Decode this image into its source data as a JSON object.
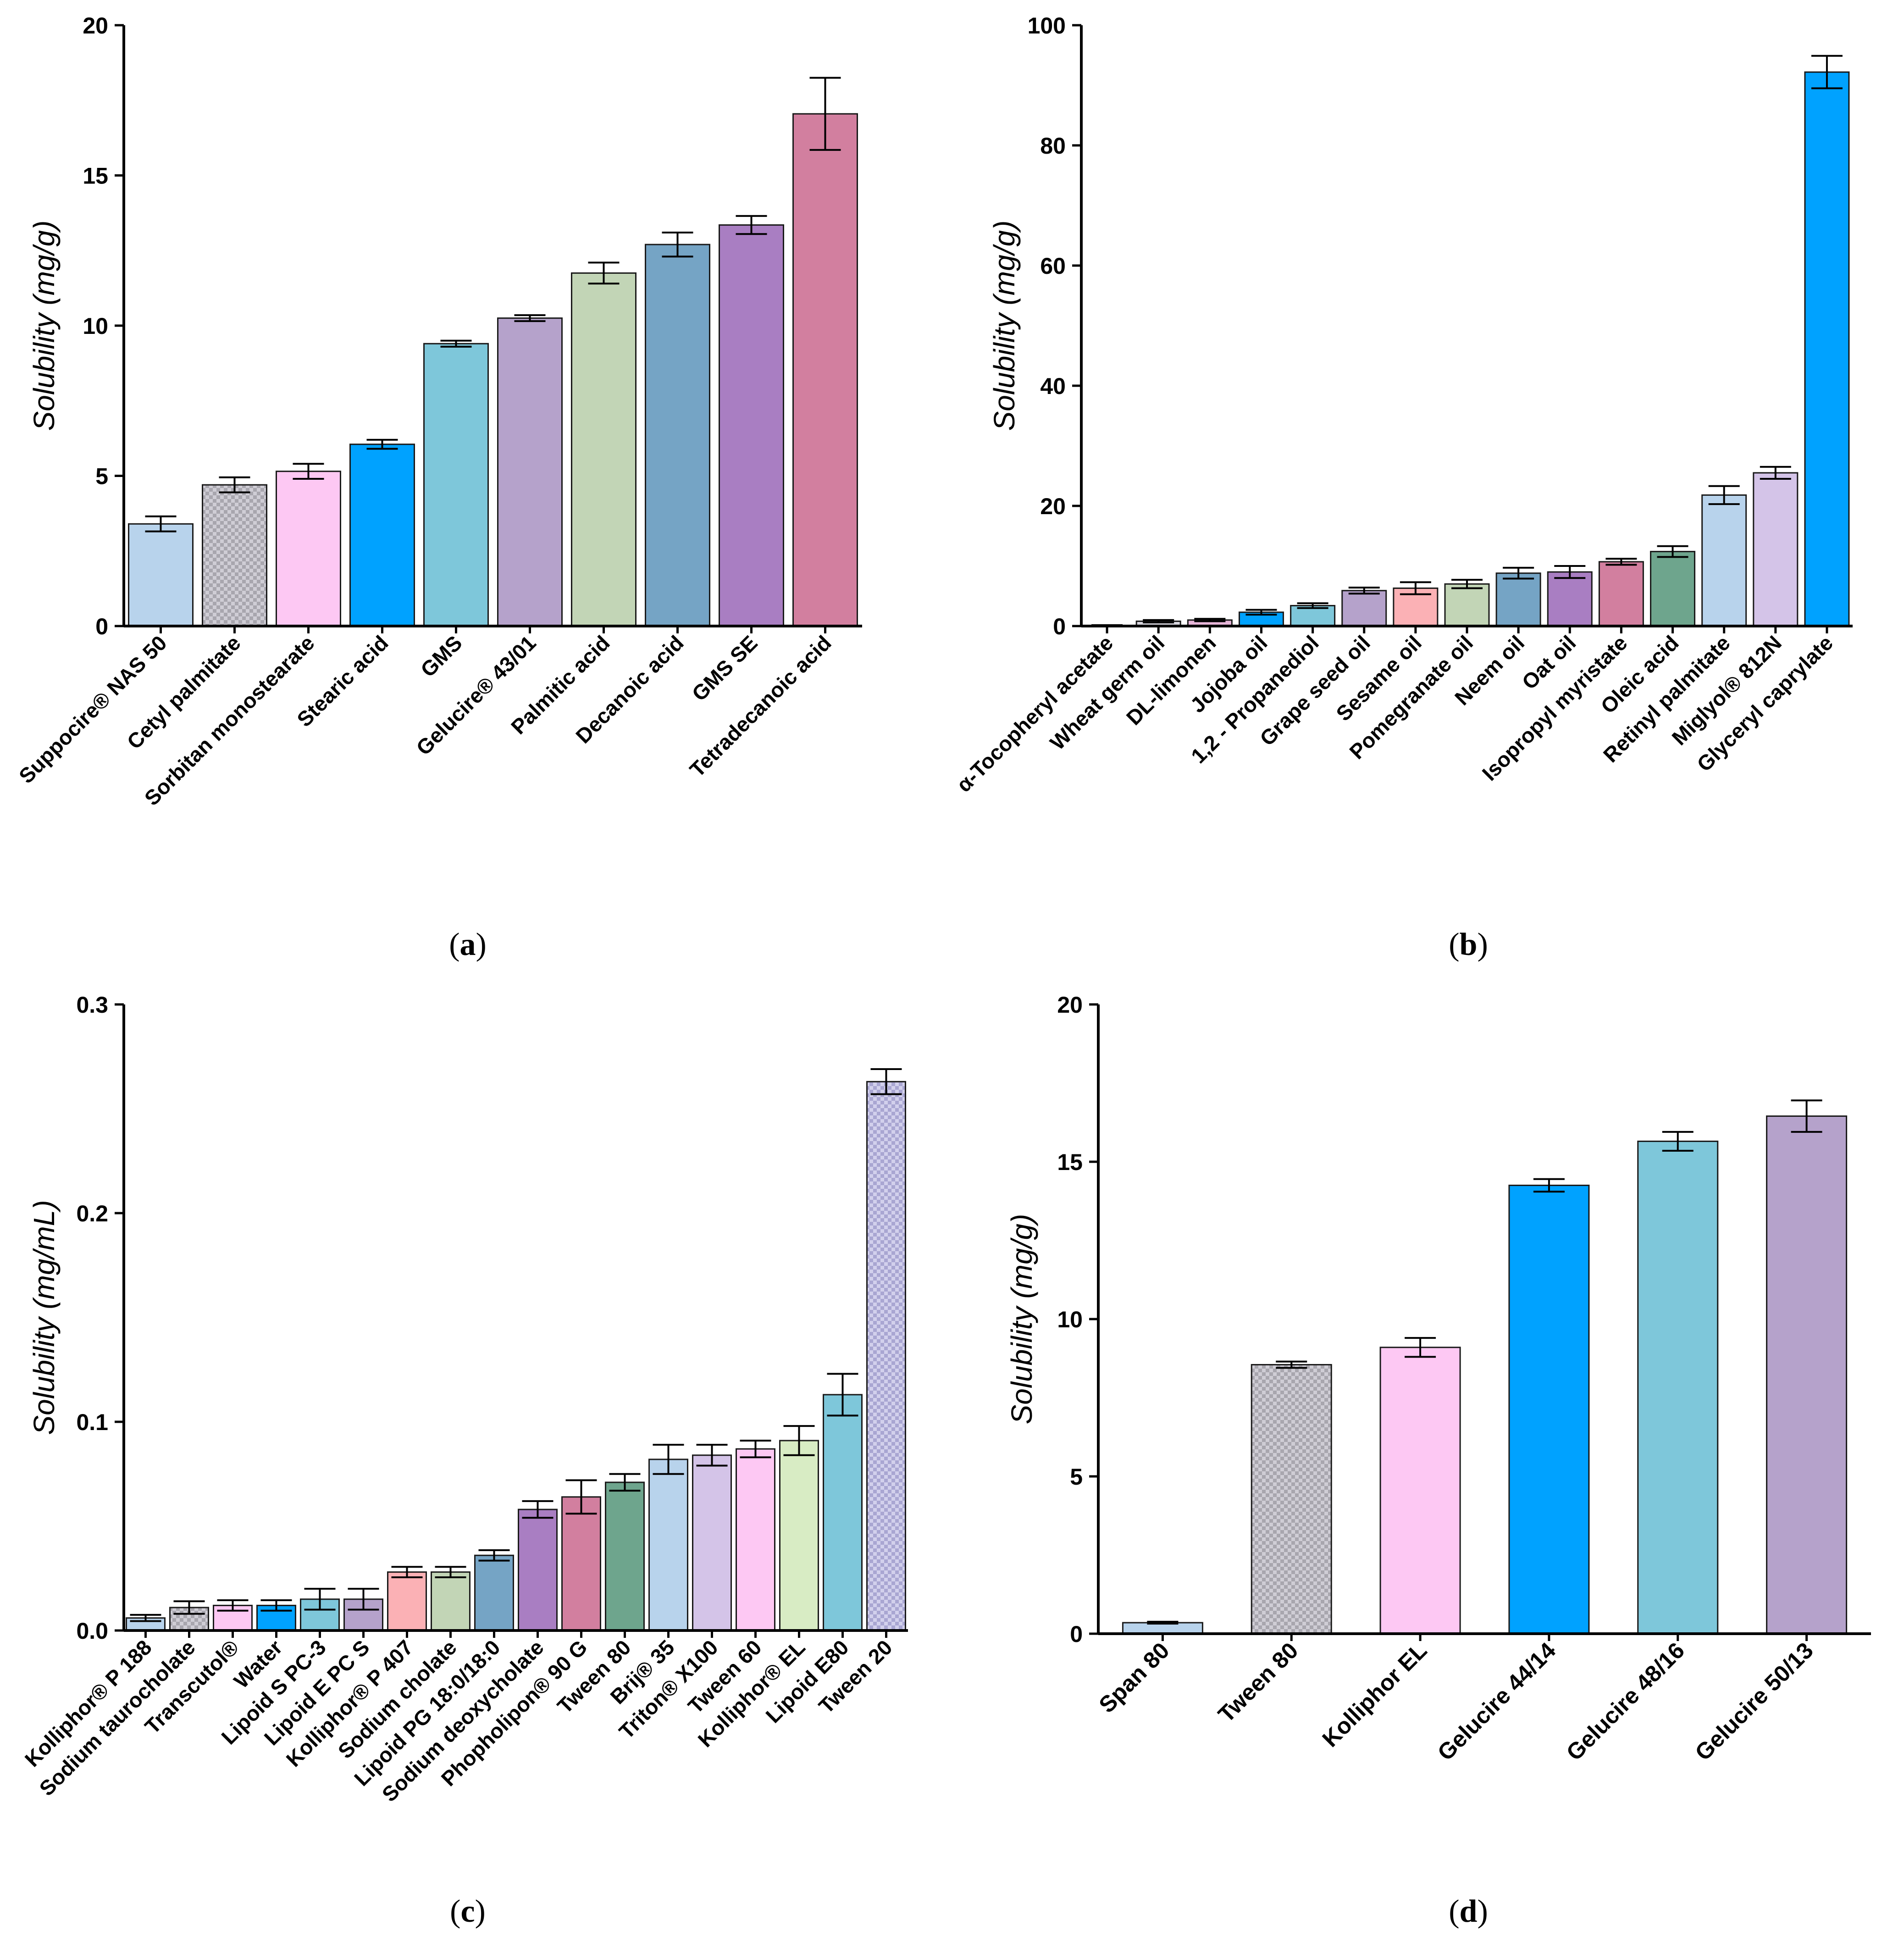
{
  "chart_data": [
    {
      "type": "bar",
      "panel": "a",
      "ylabel": "Solubility (mg/g)",
      "ylim": [
        0,
        20
      ],
      "yticks": [
        0,
        5,
        10,
        15,
        20
      ],
      "categories": [
        "Suppocire® NAS 50",
        "Cetyl palmitate",
        "Sorbitan monostearate",
        "Stearic acid",
        "GMS",
        "Gelucire® 43/01",
        "Palmitic acid",
        "Decanoic acid",
        "GMS SE",
        "Tetradecanoic acid"
      ],
      "values": [
        3.4,
        4.7,
        5.15,
        6.05,
        9.4,
        10.25,
        11.75,
        12.7,
        13.35,
        17.05
      ],
      "errors": [
        0.25,
        0.25,
        0.25,
        0.15,
        0.1,
        0.1,
        0.35,
        0.4,
        0.3,
        1.2
      ],
      "colors": [
        "#b8d3ec",
        "#c9c7cf",
        "#fdc8f3",
        "#00a2ff",
        "#7ec7da",
        "#b5a2cb",
        "#c2d5b6",
        "#75a4c5",
        "#a97ec2",
        "#d27f9f"
      ],
      "patterns": [
        false,
        true,
        false,
        false,
        false,
        false,
        false,
        false,
        false,
        false
      ]
    },
    {
      "type": "bar",
      "panel": "b",
      "ylabel": "Solubility (mg/g)",
      "ylim": [
        0,
        100
      ],
      "yticks": [
        0,
        20,
        40,
        60,
        80,
        100
      ],
      "categories": [
        "α-Tocopheryl acetate",
        "Wheat germ oil",
        "DL-limonen",
        "Jojoba oil",
        "1,2 - Propanediol",
        "Grape seed oil",
        "Sesame oil",
        "Pomegranate oil",
        "Neem oil",
        "Oat oil",
        "Isopropyl myristate",
        "Oleic acid",
        "Retinyl palmitate",
        "Miglyol® 812N",
        "Glyceryl caprylate"
      ],
      "values": [
        0.1,
        0.8,
        1.0,
        2.3,
        3.4,
        5.9,
        6.3,
        7.0,
        8.8,
        9.0,
        10.7,
        12.4,
        21.8,
        25.5,
        92.2
      ],
      "errors": [
        0.05,
        0.2,
        0.2,
        0.4,
        0.4,
        0.5,
        1.0,
        0.7,
        0.9,
        1.0,
        0.5,
        0.9,
        1.5,
        1.0,
        2.7
      ],
      "colors": [
        "#e8ceb0",
        "#d9d7df",
        "#e6b5d8",
        "#00a2ff",
        "#7ec7da",
        "#b5a2cb",
        "#fbb1b5",
        "#c2d5b6",
        "#75a4c5",
        "#a97ec2",
        "#d27f9f",
        "#6ea58d",
        "#b8d3ec",
        "#d4c4e8",
        "#00a2ff"
      ],
      "patterns": [
        false,
        false,
        false,
        false,
        false,
        false,
        false,
        false,
        false,
        false,
        false,
        false,
        false,
        false,
        false
      ]
    },
    {
      "type": "bar",
      "panel": "c",
      "ylabel": "Solubility (mg/mL)",
      "ylim": [
        0,
        0.3
      ],
      "yticks": [
        0.0,
        0.1,
        0.2,
        0.3
      ],
      "ytick_labels": [
        "0.0",
        "0.1",
        "0.2",
        "0.3"
      ],
      "categories": [
        "Kolliphor® P 188",
        "Sodium taurocholate",
        "Transcutol®",
        "Water",
        "Lipoid S PC-3",
        "Lipoid E PC S",
        "Kolliphor® P 407",
        "Sodium cholate",
        "Lipoid PG 18:0/18:0",
        "Sodium deoxycholate",
        "Phopholipon® 90 G",
        "Tween 80",
        "Brij® 35",
        "Triton® X100",
        "Tween 60",
        "Kolliphor® EL",
        "Lipoid E80",
        "Tween 20"
      ],
      "values": [
        0.006,
        0.011,
        0.012,
        0.012,
        0.015,
        0.015,
        0.028,
        0.028,
        0.036,
        0.058,
        0.064,
        0.071,
        0.082,
        0.084,
        0.087,
        0.091,
        0.113,
        0.263
      ],
      "errors": [
        0.0015,
        0.003,
        0.0025,
        0.0025,
        0.005,
        0.005,
        0.0025,
        0.0025,
        0.0025,
        0.004,
        0.008,
        0.004,
        0.007,
        0.005,
        0.004,
        0.007,
        0.01,
        0.006
      ],
      "colors": [
        "#b8d3ec",
        "#c9c7cf",
        "#fdc8f3",
        "#00a2ff",
        "#7ec7da",
        "#b5a2cb",
        "#fbb1b5",
        "#c2d5b6",
        "#75a4c5",
        "#a97ec2",
        "#d27f9f",
        "#6ea58d",
        "#b8d3ec",
        "#d4c4e8",
        "#fdc8f3",
        "#d8ecc4",
        "#7ec7da",
        "#c4c4e4"
      ],
      "patterns": [
        false,
        true,
        false,
        false,
        false,
        false,
        false,
        false,
        false,
        false,
        false,
        false,
        false,
        false,
        false,
        false,
        false,
        true
      ]
    },
    {
      "type": "bar",
      "panel": "d",
      "ylabel": "Solubility (mg/g)",
      "ylim": [
        0,
        20
      ],
      "yticks": [
        0,
        5,
        10,
        15,
        20
      ],
      "categories": [
        "Span 80",
        "Tween 80",
        "Kolliphor EL",
        "Gelucire 44/14",
        "Gelucire 48/16",
        "Gelucire 50/13"
      ],
      "values": [
        0.35,
        8.55,
        9.1,
        14.25,
        15.65,
        16.45
      ],
      "errors": [
        0.03,
        0.1,
        0.3,
        0.2,
        0.3,
        0.5
      ],
      "colors": [
        "#b8d3ec",
        "#c9c7cf",
        "#fdc8f3",
        "#00a2ff",
        "#7ec7da",
        "#b5a2cb"
      ],
      "patterns": [
        false,
        true,
        false,
        false,
        false,
        false
      ]
    }
  ],
  "panel_labels": [
    "(a)",
    "(b)",
    "(c)",
    "(d)"
  ],
  "panel_label_letters": [
    "a",
    "b",
    "c",
    "d"
  ]
}
